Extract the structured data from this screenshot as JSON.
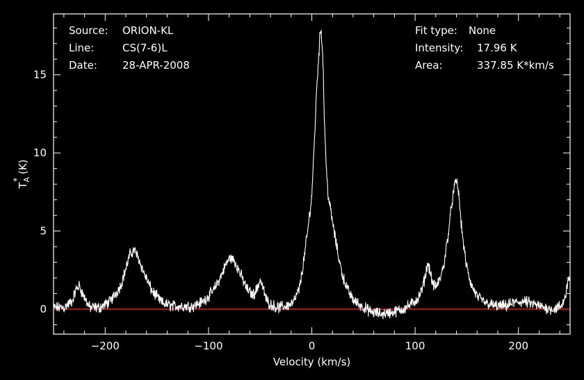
{
  "info_left": {
    "source_label": "Source:",
    "source_value": "ORION-KL",
    "line_label": "Line:",
    "line_value": "CS(7-6)L",
    "date_label": "Date:",
    "date_value": "28-APR-2008"
  },
  "info_right": {
    "fit_label": "Fit type:",
    "fit_value": "None",
    "intensity_label": "Intensity:",
    "intensity_value": "17.96 K",
    "area_label": "Area:",
    "area_value": "337.85 K*km/s"
  },
  "chart_data": {
    "type": "line",
    "xlabel": "Velocity (km/s)",
    "ylabel": "T_A^* (K)",
    "xlim": [
      -250,
      250
    ],
    "ylim": [
      -1.6,
      18.9
    ],
    "xticks": [
      -200,
      -100,
      0,
      100,
      200
    ],
    "yticks": [
      0,
      5,
      10,
      15
    ],
    "baseline": 0,
    "colors": {
      "background": "#000000",
      "axes": "#ffffff",
      "spectrum": "#ffffff",
      "baseline": "#ff2a2a"
    },
    "series": [
      {
        "values": {
          "x": [
            -250,
            -240,
            -232,
            -228,
            -225,
            -222,
            -215,
            -205,
            -195,
            -185,
            -180,
            -176,
            -172,
            -168,
            -163,
            -155,
            -145,
            -135,
            -125,
            -115,
            -105,
            -95,
            -88,
            -83,
            -79,
            -75,
            -70,
            -63,
            -57,
            -53,
            -50,
            -47,
            -44,
            -40,
            -33,
            -25,
            -18,
            -12,
            -8,
            -4,
            0,
            3,
            5,
            7,
            8,
            9,
            10,
            11,
            12,
            14,
            16,
            19,
            22,
            26,
            30,
            35,
            40,
            48,
            58,
            68,
            78,
            88,
            96,
            103,
            107,
            110,
            112,
            114,
            117,
            120,
            124,
            128,
            132,
            135,
            138,
            140,
            142,
            145,
            149,
            154,
            160,
            168,
            178,
            188,
            195,
            205,
            215,
            225,
            235,
            242,
            246,
            248,
            249,
            250
          ],
          "y": [
            0.1,
            0.1,
            0.5,
            1.3,
            1.5,
            1.0,
            0.1,
            0.1,
            0.5,
            1.5,
            2.6,
            3.5,
            3.8,
            3.3,
            2.4,
            1.2,
            0.4,
            0.2,
            0.2,
            0.2,
            0.5,
            1.2,
            2.1,
            2.9,
            3.3,
            3.1,
            2.4,
            1.3,
            0.9,
            1.3,
            1.9,
            1.3,
            0.6,
            0.3,
            0.1,
            0.2,
            0.4,
            1.3,
            3.0,
            5.0,
            7.3,
            11.5,
            14.5,
            16.5,
            17.6,
            17.96,
            17.0,
            15.5,
            12.5,
            9.0,
            7.2,
            6.0,
            4.8,
            3.3,
            2.1,
            1.2,
            0.6,
            0.2,
            -0.2,
            -0.3,
            -0.2,
            0.0,
            0.3,
            0.7,
            1.3,
            2.2,
            2.9,
            2.6,
            1.6,
            1.4,
            1.9,
            2.9,
            4.8,
            6.5,
            7.8,
            8.3,
            7.5,
            5.2,
            3.0,
            1.6,
            0.8,
            0.4,
            0.2,
            0.2,
            0.4,
            0.5,
            0.3,
            0.1,
            0.0,
            0.2,
            1.0,
            1.9,
            2.1,
            1.8
          ]
        }
      }
    ]
  }
}
